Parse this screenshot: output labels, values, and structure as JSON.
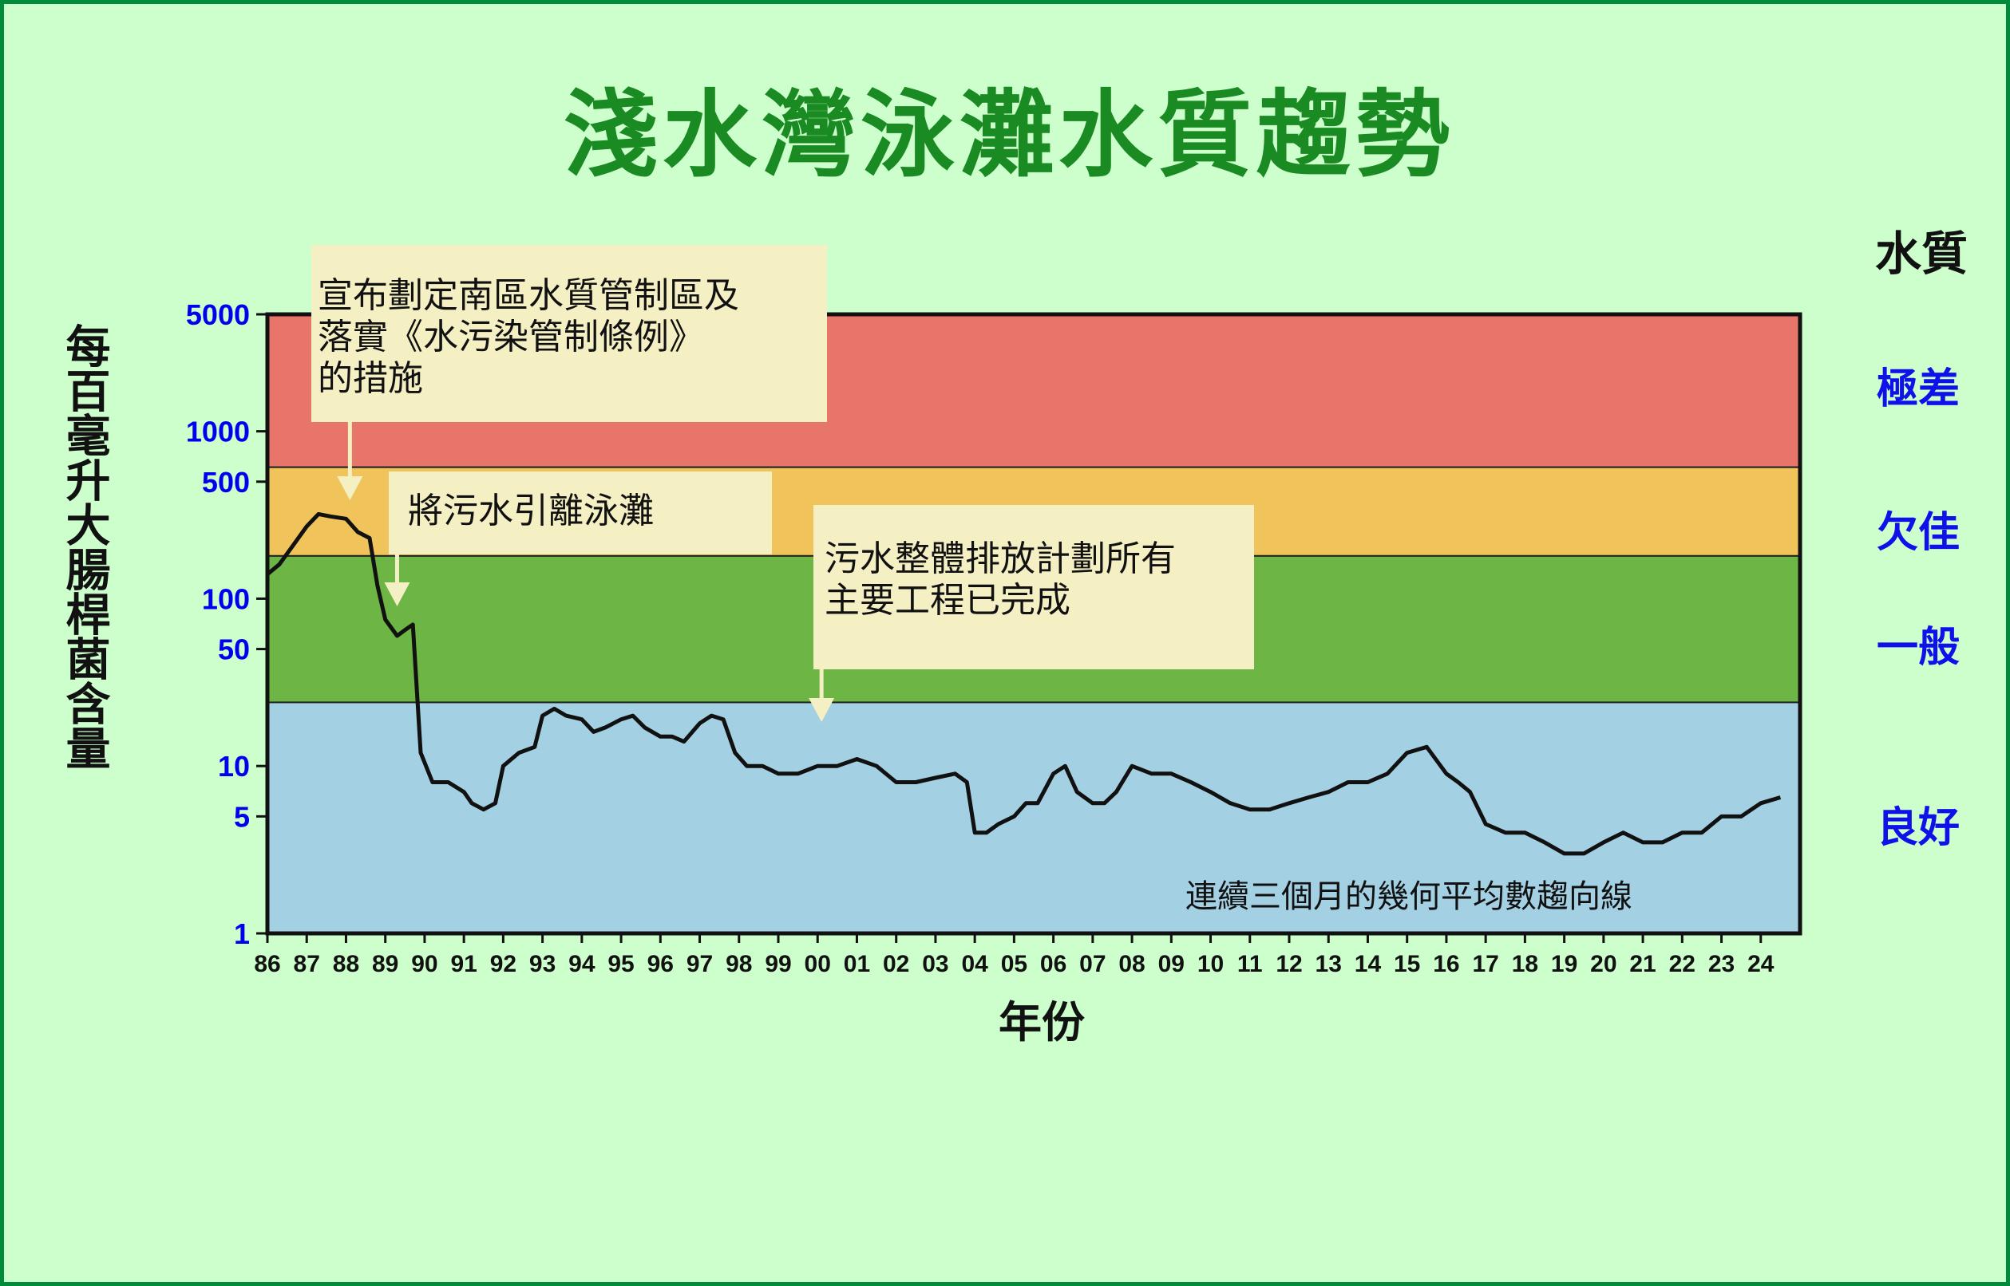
{
  "title": "淺水灣泳灘水質趨勢",
  "y_axis_label": "每百毫升大腸桿菌含量",
  "x_axis_label": "年份",
  "quality_heading": "水質",
  "quality_levels": [
    {
      "label": "極差",
      "color": "#e8756a",
      "range": [
        610,
        5000
      ]
    },
    {
      "label": "欠佳",
      "color": "#f0c45a",
      "range": [
        180,
        610
      ]
    },
    {
      "label": "一般",
      "color": "#6db544",
      "range": [
        24,
        180
      ]
    },
    {
      "label": "良好",
      "color": "#a4d0e4",
      "range": [
        1,
        24
      ]
    }
  ],
  "annotations": [
    {
      "text": "宣布劃定南區水質管制區及\n落實《水污染管制條例》\n的措施",
      "x": 1988.1
    },
    {
      "text": "將污水引離泳灘",
      "x": 1989.3
    },
    {
      "text": "污水整體排放計劃所有\n主要工程已完成",
      "x": 2000.1
    }
  ],
  "trend_label": "連續三個月的幾何平均數趨向線",
  "chart_data": {
    "type": "line",
    "title": "淺水灣泳灘水質趨勢",
    "xlabel": "年份",
    "ylabel": "每百毫升大腸桿菌含量",
    "y_scale": "log",
    "ylim": [
      1,
      5000
    ],
    "xlim": [
      1986,
      2025
    ],
    "y_ticks": [
      1,
      5,
      10,
      50,
      100,
      500,
      1000,
      5000
    ],
    "x_tick_labels": [
      "86",
      "87",
      "88",
      "89",
      "90",
      "91",
      "92",
      "93",
      "94",
      "95",
      "96",
      "97",
      "98",
      "99",
      "00",
      "01",
      "02",
      "03",
      "04",
      "05",
      "06",
      "07",
      "08",
      "09",
      "10",
      "11",
      "12",
      "13",
      "14",
      "15",
      "16",
      "17",
      "18",
      "19",
      "20",
      "21",
      "22",
      "23",
      "24"
    ],
    "series": [
      {
        "name": "連續三個月的幾何平均數趨向線",
        "x": [
          1986.0,
          1986.3,
          1986.6,
          1987.0,
          1987.3,
          1987.6,
          1988.0,
          1988.3,
          1988.6,
          1988.8,
          1989.0,
          1989.3,
          1989.5,
          1989.7,
          1989.9,
          1990.2,
          1990.6,
          1991.0,
          1991.2,
          1991.5,
          1991.8,
          1992.0,
          1992.4,
          1992.8,
          1993.0,
          1993.3,
          1993.6,
          1994.0,
          1994.3,
          1994.6,
          1995.0,
          1995.3,
          1995.6,
          1996.0,
          1996.3,
          1996.6,
          1997.0,
          1997.3,
          1997.6,
          1997.9,
          1998.2,
          1998.6,
          1999.0,
          1999.5,
          2000.0,
          2000.5,
          2001.0,
          2001.5,
          2002.0,
          2002.5,
          2003.0,
          2003.5,
          2003.8,
          2004.0,
          2004.3,
          2004.6,
          2005.0,
          2005.3,
          2005.6,
          2006.0,
          2006.3,
          2006.6,
          2007.0,
          2007.3,
          2007.6,
          2008.0,
          2008.5,
          2009.0,
          2009.5,
          2010.0,
          2010.5,
          2011.0,
          2011.5,
          2012.0,
          2012.5,
          2013.0,
          2013.5,
          2014.0,
          2014.5,
          2015.0,
          2015.5,
          2016.0,
          2016.3,
          2016.6,
          2017.0,
          2017.5,
          2018.0,
          2018.5,
          2019.0,
          2019.5,
          2020.0,
          2020.5,
          2021.0,
          2021.5,
          2022.0,
          2022.5,
          2023.0,
          2023.5,
          2024.0,
          2024.5
        ],
        "y": [
          140,
          160,
          200,
          270,
          320,
          310,
          300,
          250,
          230,
          120,
          75,
          60,
          65,
          70,
          12,
          8,
          8,
          7,
          6,
          5.5,
          6,
          10,
          12,
          13,
          20,
          22,
          20,
          19,
          16,
          17,
          19,
          20,
          17,
          15,
          15,
          14,
          18,
          20,
          19,
          12,
          10,
          10,
          9,
          9,
          10,
          10,
          11,
          10,
          8,
          8,
          8.5,
          9,
          8,
          4,
          4,
          4.5,
          5,
          6,
          6,
          9,
          10,
          7,
          6,
          6,
          7,
          10,
          9,
          9,
          8,
          7,
          6,
          5.5,
          5.5,
          6,
          6.5,
          7,
          8,
          8,
          9,
          12,
          13,
          9,
          8,
          7,
          4.5,
          4,
          4,
          3.5,
          3,
          3,
          3.5,
          4,
          3.5,
          3.5,
          4,
          4,
          5,
          5,
          6,
          6.5
        ]
      }
    ],
    "grid": false,
    "legend": "none"
  }
}
